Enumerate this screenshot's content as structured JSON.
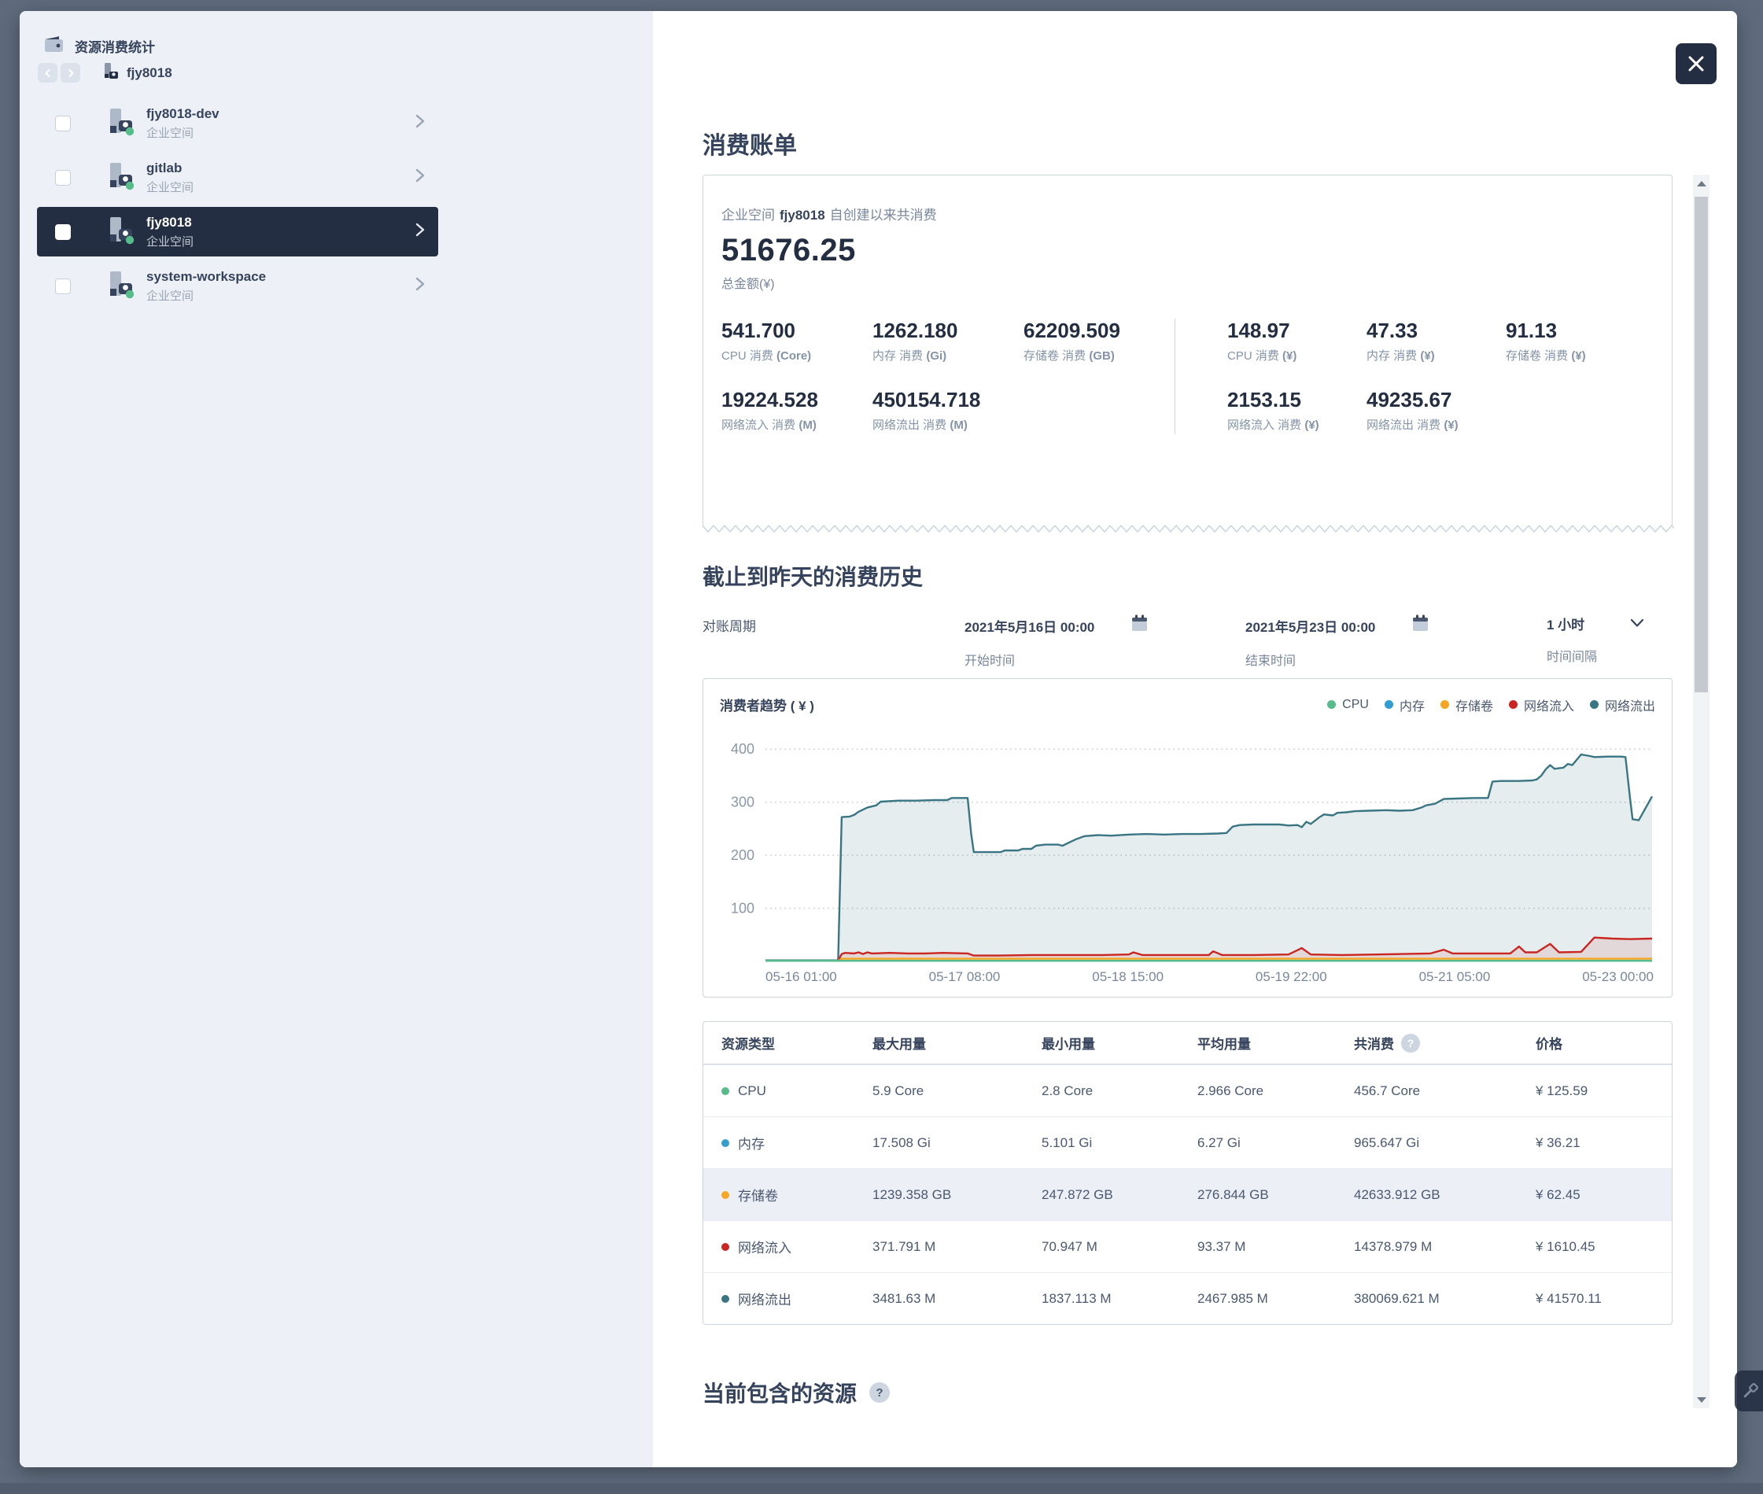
{
  "colors": {
    "accent_dark": "#242e42",
    "overlay": "#5f6b7d",
    "cpu": "#55bc8a",
    "memory": "#329dce",
    "volume": "#f5a623",
    "net_in": "#ca2621",
    "net_out": "#3a7584"
  },
  "sidebar": {
    "title": "资源消费统计",
    "breadcrumb": "fjy8018",
    "items": [
      {
        "name": "fjy8018-dev",
        "type": "企业空间",
        "selected": false
      },
      {
        "name": "gitlab",
        "type": "企业空间",
        "selected": false
      },
      {
        "name": "fjy8018",
        "type": "企业空间",
        "selected": true
      },
      {
        "name": "system-workspace",
        "type": "企业空间",
        "selected": false
      }
    ]
  },
  "bill": {
    "title": "消费账单",
    "meta_prefix": "企业空间",
    "meta_name": "fjy8018",
    "meta_suffix": "自创建以来共消费",
    "total": "51676.25",
    "total_label": "总金额(¥)",
    "usage_stats": [
      {
        "value": "541.700",
        "label": "CPU 消费",
        "unit": "(Core)"
      },
      {
        "value": "1262.180",
        "label": "内存 消费",
        "unit": "(Gi)"
      },
      {
        "value": "62209.509",
        "label": "存储卷 消费",
        "unit": "(GB)"
      },
      {
        "value": "19224.528",
        "label": "网络流入 消费",
        "unit": "(M)"
      },
      {
        "value": "450154.718",
        "label": "网络流出 消费",
        "unit": "(M)"
      }
    ],
    "cost_stats": [
      {
        "value": "148.97",
        "label": "CPU 消费",
        "unit": "(¥)"
      },
      {
        "value": "47.33",
        "label": "内存 消费",
        "unit": "(¥)"
      },
      {
        "value": "91.13",
        "label": "存储卷 消费",
        "unit": "(¥)"
      },
      {
        "value": "2153.15",
        "label": "网络流入 消费",
        "unit": "(¥)"
      },
      {
        "value": "49235.67",
        "label": "网络流出 消费",
        "unit": "(¥)"
      }
    ]
  },
  "history": {
    "title": "截止到昨天的消费历史",
    "period_label": "对账周期",
    "start_value": "2021年5月16日 00:00",
    "start_label": "开始时间",
    "end_value": "2021年5月23日 00:00",
    "end_label": "结束时间",
    "interval_value": "1 小时",
    "interval_label": "时间间隔"
  },
  "chart_data": {
    "type": "area",
    "title": "消费者趋势 ( ¥ )",
    "legend": [
      {
        "label": "CPU",
        "color": "#55bc8a"
      },
      {
        "label": "内存",
        "color": "#329dce"
      },
      {
        "label": "存储卷",
        "color": "#f5a623"
      },
      {
        "label": "网络流入",
        "color": "#ca2621"
      },
      {
        "label": "网络流出",
        "color": "#3a7584"
      }
    ],
    "x_ticks": [
      "05-16 01:00",
      "05-17 08:00",
      "05-18 15:00",
      "05-19 22:00",
      "05-21 05:00",
      "05-23 00:00"
    ],
    "y_ticks": [
      100,
      200,
      300,
      400
    ],
    "ylim": [
      0,
      430
    ],
    "grid": "dotted",
    "legend_position": "top-right",
    "series": [
      {
        "name": "网络流出",
        "color": "#3a7584",
        "fill": 0.13,
        "points": [
          [
            0,
            2
          ],
          [
            0.082,
            2
          ],
          [
            0.086,
            272
          ],
          [
            0.095,
            273
          ],
          [
            0.1,
            276
          ],
          [
            0.105,
            282
          ],
          [
            0.115,
            290
          ],
          [
            0.125,
            294
          ],
          [
            0.13,
            301
          ],
          [
            0.15,
            303
          ],
          [
            0.17,
            303
          ],
          [
            0.19,
            304
          ],
          [
            0.205,
            304
          ],
          [
            0.21,
            308
          ],
          [
            0.228,
            308
          ],
          [
            0.232,
            240
          ],
          [
            0.235,
            206
          ],
          [
            0.25,
            206
          ],
          [
            0.265,
            206
          ],
          [
            0.27,
            209
          ],
          [
            0.285,
            209
          ],
          [
            0.29,
            212
          ],
          [
            0.3,
            212
          ],
          [
            0.305,
            218
          ],
          [
            0.315,
            220
          ],
          [
            0.33,
            220
          ],
          [
            0.335,
            218
          ],
          [
            0.345,
            226
          ],
          [
            0.35,
            230
          ],
          [
            0.36,
            236
          ],
          [
            0.375,
            238
          ],
          [
            0.39,
            237
          ],
          [
            0.41,
            239
          ],
          [
            0.43,
            240
          ],
          [
            0.45,
            239
          ],
          [
            0.47,
            240
          ],
          [
            0.49,
            240
          ],
          [
            0.51,
            241
          ],
          [
            0.52,
            242
          ],
          [
            0.527,
            254
          ],
          [
            0.535,
            257
          ],
          [
            0.55,
            258
          ],
          [
            0.565,
            258
          ],
          [
            0.58,
            258
          ],
          [
            0.59,
            256
          ],
          [
            0.6,
            257
          ],
          [
            0.605,
            253
          ],
          [
            0.61,
            263
          ],
          [
            0.615,
            259
          ],
          [
            0.625,
            272
          ],
          [
            0.63,
            277
          ],
          [
            0.64,
            275
          ],
          [
            0.645,
            280
          ],
          [
            0.655,
            281
          ],
          [
            0.665,
            283
          ],
          [
            0.68,
            284
          ],
          [
            0.7,
            285
          ],
          [
            0.715,
            284
          ],
          [
            0.73,
            285
          ],
          [
            0.74,
            290
          ],
          [
            0.745,
            294
          ],
          [
            0.755,
            297
          ],
          [
            0.765,
            306
          ],
          [
            0.78,
            307
          ],
          [
            0.8,
            308
          ],
          [
            0.815,
            308
          ],
          [
            0.82,
            339
          ],
          [
            0.83,
            340
          ],
          [
            0.85,
            340
          ],
          [
            0.865,
            341
          ],
          [
            0.87,
            343
          ],
          [
            0.875,
            350
          ],
          [
            0.88,
            362
          ],
          [
            0.885,
            370
          ],
          [
            0.89,
            363
          ],
          [
            0.9,
            365
          ],
          [
            0.905,
            372
          ],
          [
            0.91,
            370
          ],
          [
            0.92,
            390
          ],
          [
            0.93,
            387
          ],
          [
            0.935,
            385
          ],
          [
            0.95,
            386
          ],
          [
            0.965,
            386
          ],
          [
            0.97,
            385
          ],
          [
            0.975,
            310
          ],
          [
            0.978,
            268
          ],
          [
            0.985,
            266
          ],
          [
            1,
            311
          ]
        ]
      },
      {
        "name": "网络流入",
        "color": "#ca2621",
        "fill": 0.1,
        "points": [
          [
            0,
            1
          ],
          [
            0.082,
            1
          ],
          [
            0.086,
            14
          ],
          [
            0.09,
            16
          ],
          [
            0.1,
            15
          ],
          [
            0.105,
            17
          ],
          [
            0.11,
            14
          ],
          [
            0.115,
            17
          ],
          [
            0.12,
            15
          ],
          [
            0.14,
            16
          ],
          [
            0.16,
            15
          ],
          [
            0.18,
            15
          ],
          [
            0.2,
            16
          ],
          [
            0.228,
            15
          ],
          [
            0.235,
            11
          ],
          [
            0.26,
            11
          ],
          [
            0.3,
            12
          ],
          [
            0.34,
            12
          ],
          [
            0.38,
            12
          ],
          [
            0.41,
            13
          ],
          [
            0.415,
            17
          ],
          [
            0.425,
            12
          ],
          [
            0.46,
            12
          ],
          [
            0.5,
            12
          ],
          [
            0.505,
            19
          ],
          [
            0.515,
            12
          ],
          [
            0.55,
            12
          ],
          [
            0.59,
            13
          ],
          [
            0.605,
            25
          ],
          [
            0.615,
            13
          ],
          [
            0.65,
            12
          ],
          [
            0.69,
            13
          ],
          [
            0.72,
            14
          ],
          [
            0.75,
            15
          ],
          [
            0.765,
            22
          ],
          [
            0.775,
            15
          ],
          [
            0.8,
            15
          ],
          [
            0.82,
            15
          ],
          [
            0.84,
            15
          ],
          [
            0.85,
            28
          ],
          [
            0.857,
            17
          ],
          [
            0.87,
            17
          ],
          [
            0.885,
            33
          ],
          [
            0.895,
            17
          ],
          [
            0.92,
            18
          ],
          [
            0.935,
            45
          ],
          [
            0.955,
            43
          ],
          [
            0.975,
            42
          ],
          [
            1,
            43
          ]
        ]
      },
      {
        "name": "存储卷",
        "color": "#f5a623",
        "fill": 0,
        "points": [
          [
            0,
            1
          ],
          [
            0.082,
            1
          ],
          [
            0.086,
            5
          ],
          [
            1,
            5
          ]
        ]
      },
      {
        "name": "内存",
        "color": "#329dce",
        "fill": 0,
        "points": [
          [
            0,
            1
          ],
          [
            1,
            1
          ]
        ]
      },
      {
        "name": "CPU",
        "color": "#55bc8a",
        "fill": 0,
        "points": [
          [
            0,
            1
          ],
          [
            1,
            1
          ]
        ]
      }
    ]
  },
  "table": {
    "headers": [
      "资源类型",
      "最大用量",
      "最小用量",
      "平均用量",
      "共消费",
      "价格"
    ],
    "rows": [
      {
        "name": "CPU",
        "color": "#55bc8a",
        "max": "5.9 Core",
        "min": "2.8 Core",
        "avg": "2.966 Core",
        "total": "456.7 Core",
        "price": "¥ 125.59",
        "highlight": false
      },
      {
        "name": "内存",
        "color": "#329dce",
        "max": "17.508 Gi",
        "min": "5.101 Gi",
        "avg": "6.27 Gi",
        "total": "965.647 Gi",
        "price": "¥ 36.21",
        "highlight": false
      },
      {
        "name": "存储卷",
        "color": "#f5a623",
        "max": "1239.358 GB",
        "min": "247.872 GB",
        "avg": "276.844 GB",
        "total": "42633.912 GB",
        "price": "¥ 62.45",
        "highlight": true
      },
      {
        "name": "网络流入",
        "color": "#ca2621",
        "max": "371.791 M",
        "min": "70.947 M",
        "avg": "93.37 M",
        "total": "14378.979 M",
        "price": "¥ 1610.45",
        "highlight": false
      },
      {
        "name": "网络流出",
        "color": "#3a7584",
        "max": "3481.63 M",
        "min": "1837.113 M",
        "avg": "2467.985 M",
        "total": "380069.621 M",
        "price": "¥ 41570.11",
        "highlight": false
      }
    ]
  },
  "resources_title": "当前包含的资源"
}
